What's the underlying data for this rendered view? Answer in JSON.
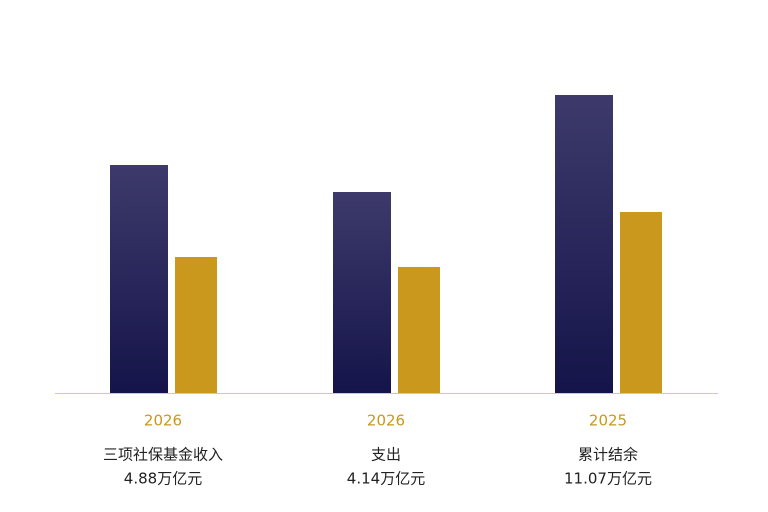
{
  "chart_data": {
    "type": "bar",
    "categories": [
      "三项社保基金收入",
      "支出",
      "累计结余"
    ],
    "years": [
      "2026",
      "2026",
      "2025"
    ],
    "amounts": [
      "4.88万亿元",
      "4.14万亿元",
      "11.07万亿元"
    ],
    "series": [
      {
        "color": "#1c1a52",
        "values": [
          228,
          201,
          298
        ]
      },
      {
        "color": "#c9981c",
        "values": [
          136,
          126,
          181
        ]
      }
    ],
    "ylim": [
      0,
      300
    ]
  }
}
